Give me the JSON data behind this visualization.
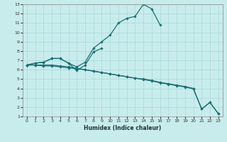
{
  "xlabel": "Humidex (Indice chaleur)",
  "bg_color": "#c8ecec",
  "grid_color": "#a8d8d8",
  "line_color": "#1a7070",
  "xlim": [
    -0.5,
    23.5
  ],
  "ylim": [
    1,
    13
  ],
  "xticks": [
    0,
    1,
    2,
    3,
    4,
    5,
    6,
    7,
    8,
    9,
    10,
    11,
    12,
    13,
    14,
    15,
    16,
    17,
    18,
    19,
    20,
    21,
    22,
    23
  ],
  "yticks": [
    1,
    2,
    3,
    4,
    5,
    6,
    7,
    8,
    9,
    10,
    11,
    12,
    13
  ],
  "lines": [
    {
      "x": [
        0,
        1,
        2,
        3,
        4,
        5,
        6,
        7,
        8,
        9,
        10,
        11,
        12,
        13,
        14,
        15,
        16,
        17
      ],
      "y": [
        6.5,
        6.7,
        6.8,
        7.2,
        7.2,
        6.7,
        6.3,
        6.8,
        8.3,
        9.0,
        9.7,
        11.0,
        11.5,
        11.7,
        13.0,
        12.5,
        10.8,
        null
      ]
    },
    {
      "x": [
        0,
        1,
        2,
        3,
        4,
        5,
        6,
        7,
        8,
        9
      ],
      "y": [
        6.5,
        6.7,
        6.8,
        7.2,
        7.2,
        6.7,
        5.9,
        6.5,
        7.9,
        8.3
      ]
    },
    {
      "x": [
        0,
        1,
        2,
        3,
        4,
        5,
        6,
        7,
        8,
        9,
        10,
        11,
        12,
        13,
        14,
        15,
        16,
        17,
        18,
        19,
        20,
        21,
        22,
        23
      ],
      "y": [
        6.5,
        6.5,
        6.4,
        6.4,
        6.3,
        6.2,
        6.1,
        6.0,
        5.85,
        5.7,
        5.55,
        5.4,
        5.25,
        5.1,
        5.0,
        4.85,
        4.65,
        4.5,
        4.35,
        4.2,
        4.0,
        1.8,
        2.5,
        1.3
      ]
    },
    {
      "x": [
        0,
        1,
        2,
        3,
        4,
        5,
        6,
        7,
        8,
        9,
        10,
        11,
        12,
        13,
        14,
        15,
        16,
        17,
        18,
        19,
        20,
        21,
        22,
        23
      ],
      "y": [
        6.5,
        6.5,
        6.5,
        6.5,
        6.4,
        6.3,
        6.15,
        6.0,
        5.85,
        5.7,
        5.55,
        5.4,
        5.25,
        5.1,
        4.95,
        4.8,
        4.6,
        4.45,
        4.3,
        4.15,
        3.95,
        1.8,
        2.5,
        1.3
      ]
    }
  ]
}
